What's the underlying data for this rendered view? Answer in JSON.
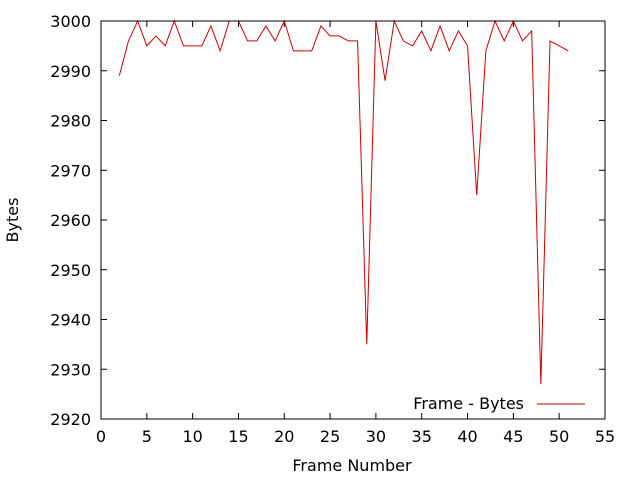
{
  "chart_data": {
    "type": "line",
    "title": "",
    "xlabel": "Frame Number",
    "ylabel": "Bytes",
    "xlim": [
      0,
      55
    ],
    "ylim": [
      2920,
      3000
    ],
    "xticks": [
      0,
      5,
      10,
      15,
      20,
      25,
      30,
      35,
      40,
      45,
      50,
      55
    ],
    "yticks": [
      2920,
      2930,
      2940,
      2950,
      2960,
      2970,
      2980,
      2990,
      3000
    ],
    "grid": false,
    "legend_position": "bottom-right",
    "series": [
      {
        "name": "Frame - Bytes",
        "color": "#cc0000",
        "x": [
          2,
          3,
          4,
          5,
          6,
          7,
          8,
          9,
          10,
          11,
          12,
          13,
          14,
          15,
          16,
          17,
          18,
          19,
          20,
          21,
          22,
          23,
          24,
          25,
          26,
          27,
          28,
          29,
          30,
          31,
          32,
          33,
          34,
          35,
          36,
          37,
          38,
          39,
          40,
          41,
          42,
          43,
          44,
          45,
          46,
          47,
          48,
          49,
          50,
          51
        ],
        "y": [
          2989,
          2996,
          3000,
          2995,
          2997,
          2995,
          3000,
          2995,
          2995,
          2995,
          2999,
          2994,
          3000,
          3000,
          2996,
          2996,
          2999,
          2996,
          3000,
          2994,
          2994,
          2994,
          2999,
          2997,
          2997,
          2996,
          2996,
          2935,
          3000,
          2988,
          3000,
          2996,
          2995,
          2998,
          2994,
          2999,
          2994,
          2998,
          2995,
          2965,
          2994,
          3000,
          2996,
          3000,
          2996,
          2998,
          2927,
          2996,
          2995,
          2994
        ]
      }
    ]
  }
}
